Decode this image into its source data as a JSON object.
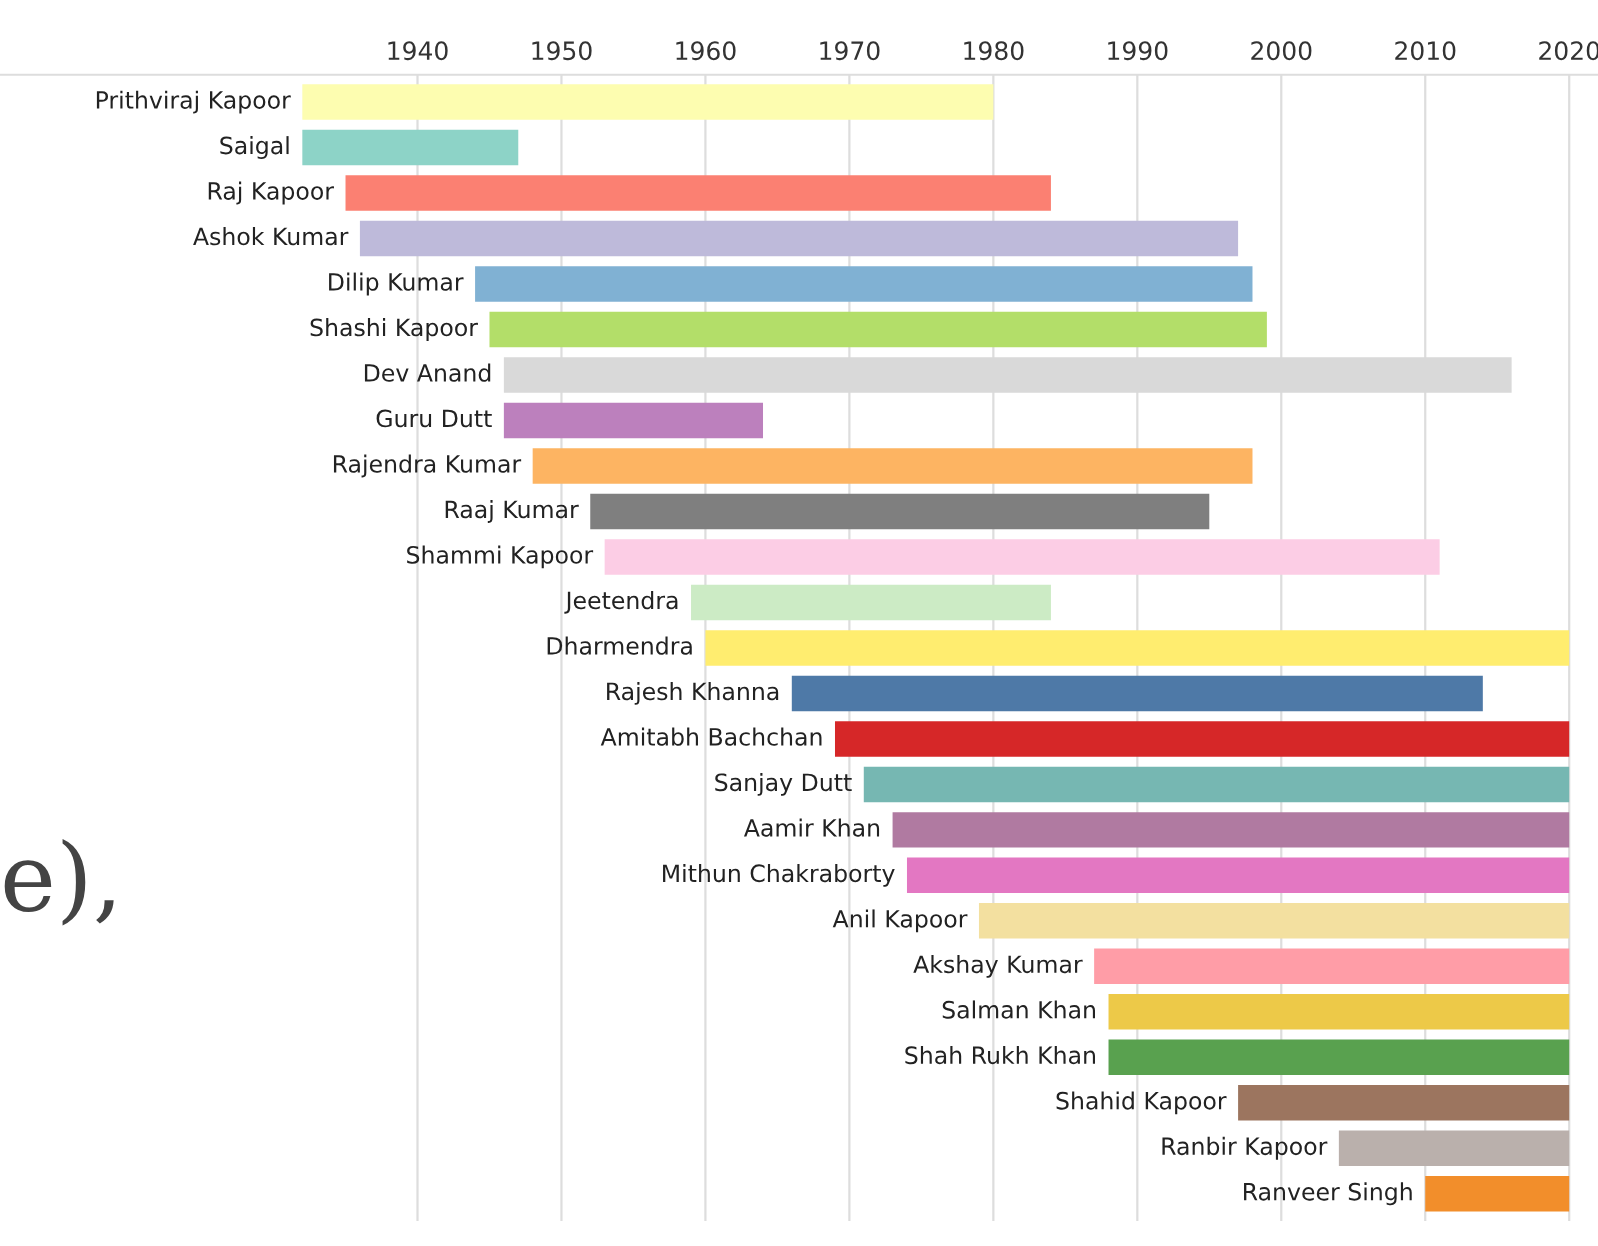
{
  "chart_data": {
    "type": "bar",
    "orientation": "horizontal",
    "categories": [
      "Prithviraj Kapoor",
      "Saigal",
      "Raj Kapoor",
      "Ashok Kumar",
      "Dilip Kumar",
      "Shashi Kapoor",
      "Dev Anand",
      "Guru Dutt",
      "Rajendra Kumar",
      "Raaj Kumar",
      "Shammi Kapoor",
      "Jeetendra",
      "Dharmendra",
      "Rajesh Khanna",
      "Amitabh Bachchan",
      "Sanjay Dutt",
      "Aamir Khan",
      "Mithun Chakraborty",
      "Anil Kapoor",
      "Akshay Kumar",
      "Salman Khan",
      "Shah Rukh Khan",
      "Shahid Kapoor",
      "Ranbir Kapoor",
      "Ranveer Singh"
    ],
    "base": [
      1932,
      1932,
      1935,
      1936,
      1944,
      1945,
      1946,
      1946,
      1948,
      1952,
      1953,
      1959,
      1960,
      1966,
      1969,
      1971,
      1973,
      1974,
      1979,
      1987,
      1988,
      1988,
      1997,
      2004,
      2010
    ],
    "values": [
      48,
      15,
      49,
      61,
      54,
      54,
      70,
      18,
      50,
      43,
      58,
      25,
      60,
      48,
      51,
      49,
      47,
      46,
      41,
      33,
      32,
      32,
      23,
      16,
      10
    ],
    "colors": [
      "#fdfdb0",
      "#8dd3c7",
      "#fb8072",
      "#bebada",
      "#80b1d3",
      "#b3de69",
      "#d9d9d9",
      "#bc80bd",
      "#fdb462",
      "#7f7f7f",
      "#fccde5",
      "#ccebc5",
      "#ffed6f",
      "#4e79a7",
      "#d62728",
      "#76b7b2",
      "#b07aa1",
      "#e377c2",
      "#f3e0a0",
      "#ff9da7",
      "#edc948",
      "#59a14f",
      "#9c755f",
      "#bab0ac",
      "#f28e2b"
    ],
    "xlim": [
      1911,
      2022
    ],
    "xticks": [
      1940,
      1950,
      1960,
      1970,
      1980,
      1990,
      2000,
      2010,
      2020
    ],
    "grid": "x",
    "annotations": [
      "e),"
    ]
  }
}
